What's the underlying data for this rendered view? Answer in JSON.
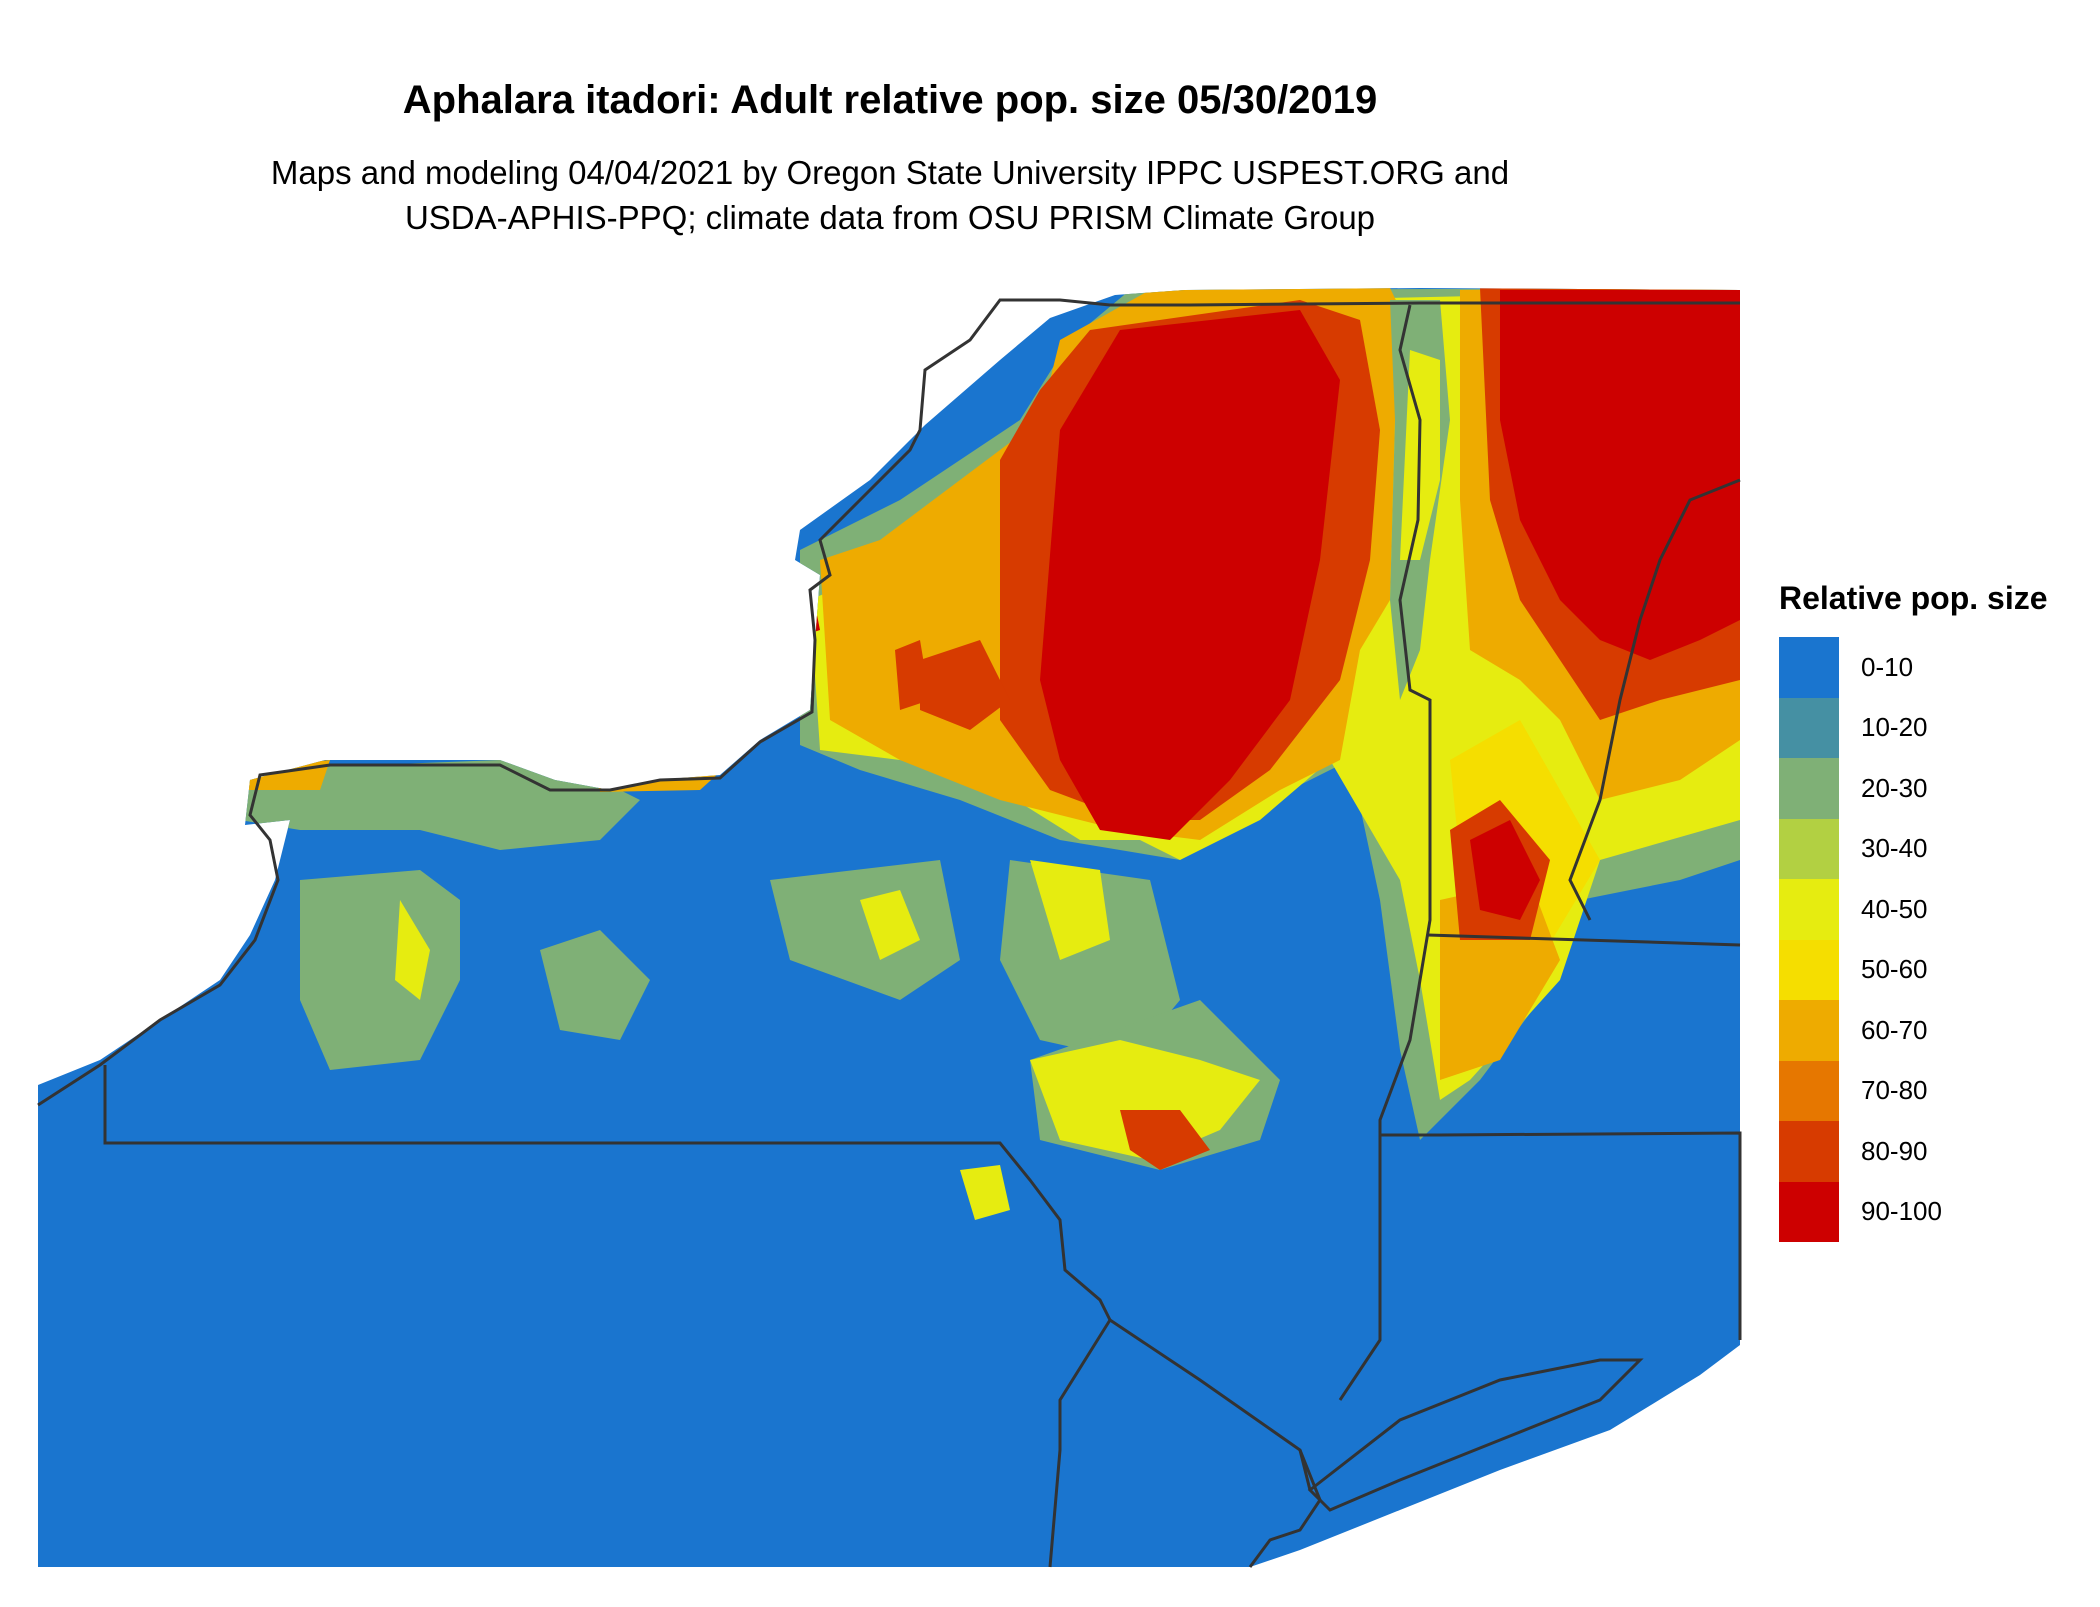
{
  "title": "Aphalara itadori: Adult relative pop. size 05/30/2019",
  "subtitle_lines": [
    "Maps and modeling 04/04/2021 by Oregon State University IPPC USPEST.ORG and",
    "USDA-APHIS-PPQ; climate data from OSU PRISM Climate Group"
  ],
  "legend": {
    "title": "Relative pop. size",
    "items": [
      {
        "label": "0-10",
        "color": "#1a75cf"
      },
      {
        "label": "10-20",
        "color": "#4590a3"
      },
      {
        "label": "20-30",
        "color": "#7fb076"
      },
      {
        "label": "30-40",
        "color": "#b2d042"
      },
      {
        "label": "40-50",
        "color": "#e6ec10"
      },
      {
        "label": "50-60",
        "color": "#f5de00"
      },
      {
        "label": "60-70",
        "color": "#eeab00"
      },
      {
        "label": "70-80",
        "color": "#e67700"
      },
      {
        "label": "80-90",
        "color": "#d73b00"
      },
      {
        "label": "90-100",
        "color": "#cd0000"
      }
    ]
  },
  "colors": {
    "state_border": "#333333",
    "water": "#ffffff"
  }
}
